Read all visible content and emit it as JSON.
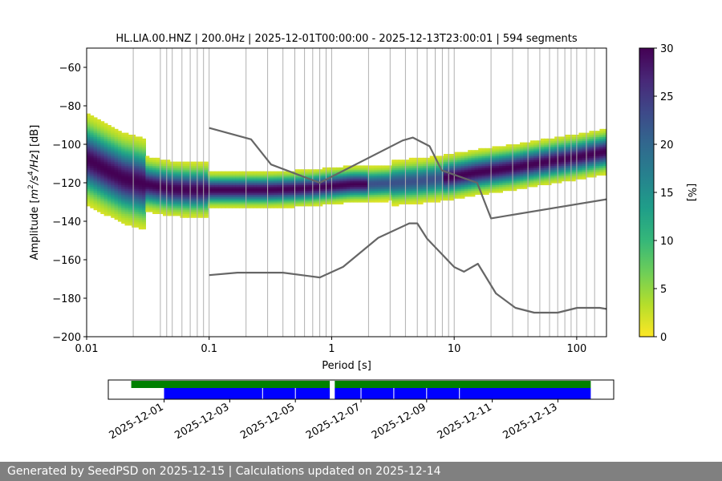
{
  "footer": {
    "text": "Generated by SeedPSD on 2025-12-15 | Calculations updated on 2025-12-14"
  },
  "chart_data": [
    {
      "type": "heatmap",
      "title": "HL.LIA.00.HNZ | 200.0Hz | 2025-12-01T00:00:00 - 2025-12-13T23:00:01 | 594 segments",
      "xlabel": "Period [s]",
      "ylabel": "Amplitude [m²/s⁴/Hz] [dB]",
      "x_scale": "log",
      "xlim": [
        0.01,
        175
      ],
      "ylim": [
        -200,
        -50
      ],
      "x_ticks": [
        0.01,
        0.1,
        1,
        10,
        100
      ],
      "x_tick_labels": [
        "0.01",
        "0.1",
        "1",
        "10",
        "100"
      ],
      "y_ticks": [
        -200,
        -180,
        -160,
        -140,
        -120,
        -100,
        -80,
        -60
      ],
      "y_tick_labels": [
        "−200",
        "−180",
        "−160",
        "−140",
        "−120",
        "−100",
        "−80",
        "−60"
      ],
      "grid_periods": [
        0.024,
        0.04,
        0.045,
        0.05,
        0.06,
        0.07,
        0.08,
        0.09,
        0.1,
        0.2,
        0.3,
        0.4,
        0.5,
        0.6,
        0.7,
        0.8,
        0.9,
        1,
        2,
        3,
        4,
        5,
        6,
        7,
        8,
        9,
        10,
        20,
        30,
        40,
        50,
        60,
        70,
        80,
        90,
        100,
        120,
        140
      ],
      "grid": true,
      "colorbar": {
        "label": "[%]",
        "range": [
          0,
          30
        ],
        "ticks": [
          0,
          5,
          10,
          15,
          20,
          25,
          30
        ],
        "tick_labels": [
          "0",
          "5",
          "10",
          "15",
          "20",
          "25",
          "30"
        ],
        "colormap": "viridis_r",
        "colors": [
          "#fde725",
          "#b5de2b",
          "#6ece58",
          "#35b779",
          "#1f9e89",
          "#26828e",
          "#31688e",
          "#3e4989",
          "#482878",
          "#440154"
        ]
      },
      "density_ridge": {
        "period": [
          0.01,
          0.015,
          0.02,
          0.03,
          0.05,
          0.07,
          0.1,
          0.2,
          0.3,
          0.5,
          0.7,
          1,
          1.5,
          2,
          3,
          5,
          7,
          10,
          15,
          20,
          30,
          50,
          70,
          100,
          175
        ],
        "db": [
          -108,
          -114,
          -118,
          -121,
          -123.5,
          -124,
          -124,
          -124,
          -124,
          -123.5,
          -123,
          -122,
          -121,
          -121,
          -120.5,
          -119.5,
          -118.5,
          -117,
          -115,
          -114,
          -112.5,
          -110,
          -108.5,
          -107,
          -104
        ]
      },
      "nlnm": {
        "period": [
          0.1,
          0.17,
          0.4,
          0.8,
          1.24,
          2.4,
          4.3,
          5.0,
          6.0,
          10.0,
          12.0,
          15.6,
          21.9,
          31.6,
          45.0,
          70.0,
          101.0,
          154.0,
          175.0
        ],
        "db": [
          -168,
          -166.7,
          -166.7,
          -169.2,
          -163.7,
          -148.6,
          -141.1,
          -141.1,
          -149.0,
          -163.8,
          -166.2,
          -162.1,
          -177.5,
          -185.0,
          -187.5,
          -187.5,
          -185.0,
          -185.0,
          -185.6
        ]
      },
      "nhnm": {
        "period": [
          0.1,
          0.22,
          0.32,
          0.8,
          3.8,
          4.6,
          6.3,
          7.9,
          15.4,
          20.0,
          175.0
        ],
        "db": [
          -91.5,
          -97.4,
          -110.5,
          -120.0,
          -98.0,
          -96.5,
          -101.0,
          -113.5,
          -120.0,
          -138.5,
          -128.6
        ]
      }
    },
    {
      "type": "timeline",
      "x_tick_labels": [
        "2025-12-01",
        "2025-12-03",
        "2025-12-05",
        "2025-12-07",
        "2025-12-09",
        "2025-12-11",
        "2025-12-13"
      ],
      "x_tick_days": [
        1,
        3,
        5,
        7,
        9,
        11,
        13
      ],
      "xlim_days": [
        -0.7,
        14.7
      ],
      "available_data": {
        "color": "#008000",
        "segments": [
          [
            0.0,
            6.05
          ],
          [
            6.2,
            14.0
          ]
        ]
      },
      "psd_segments": {
        "color": "#0000ff",
        "start": 1.0,
        "end": 14.0,
        "gap": [
          6.05,
          6.2
        ],
        "boundaries": [
          4.0,
          5.0,
          7.0,
          8.0,
          9.0,
          10.0
        ]
      }
    }
  ]
}
